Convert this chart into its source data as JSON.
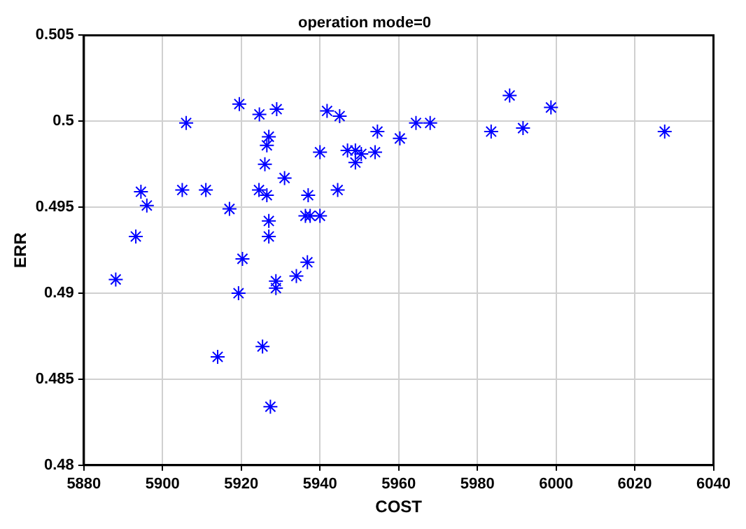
{
  "chart_data": {
    "type": "scatter",
    "title": "operation mode=0",
    "xlabel": "COST",
    "ylabel": "ERR",
    "series": [
      {
        "color": "#0000ff",
        "x": [
          5888.1,
          5893.2,
          5894.5,
          5896,
          5906,
          5905,
          5911,
          5917,
          5919.5,
          5924.6,
          5929,
          5941.8,
          5945,
          5927,
          5926.5,
          5926,
          5931,
          5924.5,
          5926.5,
          5937,
          5940,
          5944.5,
          5936.3,
          5937.5,
          5940,
          5927,
          5927,
          5947,
          5949,
          5950.5,
          5949,
          5954,
          5954.6,
          5960.3,
          5964.4,
          5968,
          5983.5,
          5988.2,
          5991.6,
          5998.7,
          6027.6,
          5920.3,
          5936.8,
          5934,
          5928.8,
          5928.8,
          5919.3,
          5925.4,
          5914,
          5927.4
        ],
        "values": [
          0.4908,
          0.4933,
          0.4959,
          0.4951,
          0.4999,
          0.496,
          0.496,
          0.4949,
          0.501,
          0.5004,
          0.5007,
          0.5006,
          0.5003,
          0.4991,
          0.4986,
          0.4975,
          0.4967,
          0.496,
          0.4957,
          0.4957,
          0.4982,
          0.496,
          0.4945,
          0.4945,
          0.4945,
          0.4942,
          0.4933,
          0.4983,
          0.4983,
          0.4981,
          0.4976,
          0.4982,
          0.4994,
          0.499,
          0.4999,
          0.4999,
          0.4994,
          0.5015,
          0.4996,
          0.5008,
          0.4994,
          0.492,
          0.4918,
          0.491,
          0.4907,
          0.4903,
          0.49,
          0.4869,
          0.4863,
          0.4834
        ]
      }
    ],
    "marker": "cross",
    "grid": true,
    "xlim": [
      5880,
      6040
    ],
    "xticks": [
      5880,
      5900,
      5920,
      5940,
      5960,
      5980,
      6000,
      6020,
      6040
    ],
    "ylim": [
      0.48,
      0.505
    ],
    "yticks": [
      0.48,
      0.485,
      0.49,
      0.495,
      0.5,
      0.505
    ]
  }
}
